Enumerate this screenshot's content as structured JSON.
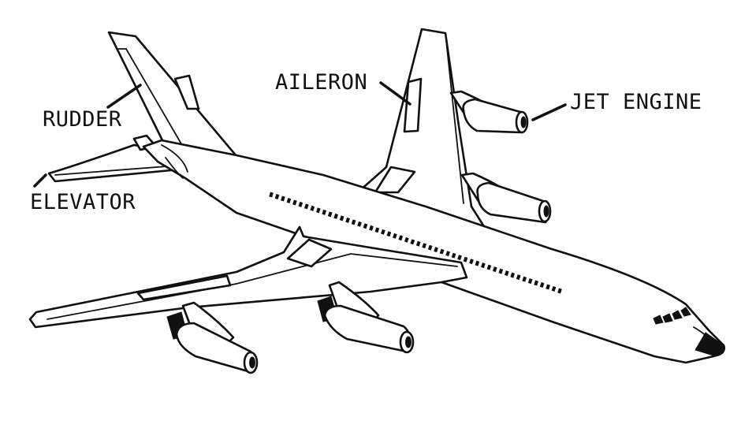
{
  "labels": {
    "aileron": "AILERON",
    "jet_engine": "JET ENGINE",
    "rudder": "RUDDER",
    "elevator": "ELEVATOR"
  },
  "colors": {
    "ink": "#111111",
    "background": "#ffffff"
  }
}
